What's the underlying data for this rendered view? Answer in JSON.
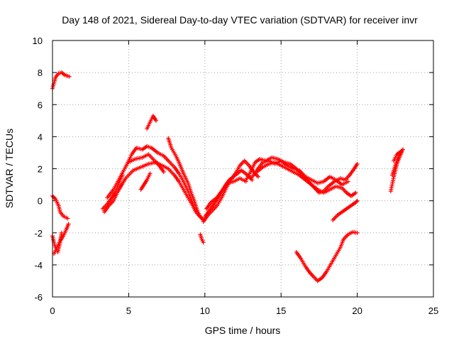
{
  "chart_data": {
    "type": "scatter",
    "title": "Day 148 of 2021, Sidereal Day-to-day VTEC variation (SDTVAR) for receiver invr",
    "xlabel": "GPS time / hours",
    "ylabel": "SDTVAR / TECUs",
    "xlim": [
      0,
      25
    ],
    "ylim": [
      -6,
      10
    ],
    "xticks": [
      0,
      5,
      10,
      15,
      20,
      25
    ],
    "yticks": [
      -6,
      -4,
      -2,
      0,
      2,
      4,
      6,
      8,
      10
    ],
    "xtick_labels": [
      "0",
      "5",
      "10",
      "15",
      "20",
      "25"
    ],
    "ytick_labels": [
      "-6",
      "-4",
      "-2",
      "0",
      "2",
      "4",
      "6",
      "8",
      "10"
    ],
    "grid": true,
    "marker": "+",
    "series": [
      {
        "name": "tracks",
        "color": "#ff0000",
        "tracks": [
          [
            [
              0.0,
              7.0
            ],
            [
              0.2,
              7.7
            ],
            [
              0.4,
              7.95
            ],
            [
              0.6,
              8.0
            ],
            [
              0.8,
              7.85
            ],
            [
              1.1,
              7.75
            ]
          ],
          [
            [
              0.0,
              0.3
            ],
            [
              0.2,
              0.1
            ],
            [
              0.4,
              -0.3
            ],
            [
              0.5,
              -0.7
            ],
            [
              0.7,
              -0.95
            ],
            [
              1.0,
              -1.1
            ]
          ],
          [
            [
              0.1,
              -3.3
            ],
            [
              0.3,
              -2.9
            ],
            [
              0.5,
              -2.5
            ],
            [
              0.7,
              -2.2
            ],
            [
              0.9,
              -1.8
            ],
            [
              1.05,
              -1.45
            ]
          ],
          [
            [
              0.0,
              -2.2
            ],
            [
              0.15,
              -2.8
            ],
            [
              0.35,
              -3.2
            ],
            [
              0.5,
              -2.6
            ],
            [
              0.6,
              -2.0
            ]
          ],
          [
            [
              3.3,
              -0.5
            ],
            [
              3.6,
              -0.2
            ],
            [
              3.9,
              0.2
            ],
            [
              4.1,
              0.5
            ],
            [
              4.4,
              1.2
            ],
            [
              4.6,
              1.6
            ]
          ],
          [
            [
              3.4,
              -0.7
            ],
            [
              3.7,
              -0.3
            ],
            [
              4.0,
              0.0
            ],
            [
              4.3,
              0.6
            ],
            [
              4.5,
              1.0
            ]
          ],
          [
            [
              3.6,
              0.2
            ],
            [
              4.0,
              0.7
            ],
            [
              4.4,
              1.4
            ],
            [
              4.9,
              2.3
            ],
            [
              5.2,
              2.9
            ],
            [
              5.5,
              3.3
            ],
            [
              5.9,
              3.2
            ],
            [
              6.2,
              3.4
            ],
            [
              6.5,
              3.3
            ],
            [
              6.9,
              3.0
            ],
            [
              7.3,
              2.8
            ],
            [
              7.6,
              2.5
            ],
            [
              8.0,
              2.1
            ],
            [
              8.3,
              1.7
            ],
            [
              8.6,
              1.2
            ],
            [
              8.9,
              0.6
            ],
            [
              9.1,
              0.1
            ],
            [
              9.3,
              -0.4
            ],
            [
              9.5,
              -0.8
            ],
            [
              9.8,
              -1.1
            ]
          ],
          [
            [
              4.3,
              0.6
            ],
            [
              4.8,
              1.4
            ],
            [
              5.3,
              1.9
            ],
            [
              5.8,
              2.1
            ],
            [
              6.3,
              2.3
            ],
            [
              6.8,
              2.4
            ],
            [
              7.2,
              2.2
            ],
            [
              7.6,
              2.0
            ],
            [
              8.0,
              1.6
            ],
            [
              8.3,
              1.2
            ],
            [
              8.6,
              0.7
            ],
            [
              8.9,
              0.2
            ],
            [
              9.2,
              -0.3
            ],
            [
              9.4,
              -0.7
            ]
          ],
          [
            [
              5.0,
              2.4
            ],
            [
              5.4,
              2.6
            ],
            [
              5.9,
              2.7
            ],
            [
              6.3,
              2.9
            ],
            [
              6.7,
              2.5
            ],
            [
              7.0,
              2.2
            ],
            [
              7.3,
              1.8
            ]
          ],
          [
            [
              7.6,
              3.9
            ],
            [
              7.8,
              3.3
            ],
            [
              8.1,
              2.8
            ],
            [
              8.3,
              2.4
            ],
            [
              8.6,
              1.7
            ],
            [
              8.9,
              1.1
            ],
            [
              9.1,
              0.5
            ],
            [
              9.3,
              0.0
            ],
            [
              9.5,
              -0.6
            ],
            [
              9.7,
              -1.0
            ],
            [
              9.9,
              -1.2
            ]
          ],
          [
            [
              6.2,
              4.5
            ],
            [
              6.4,
              4.9
            ],
            [
              6.6,
              5.3
            ],
            [
              6.8,
              5.0
            ]
          ],
          [
            [
              5.8,
              0.7
            ],
            [
              6.0,
              1.0
            ],
            [
              6.2,
              1.3
            ],
            [
              6.4,
              1.7
            ]
          ],
          [
            [
              9.7,
              -2.1
            ],
            [
              9.8,
              -2.4
            ],
            [
              9.9,
              -2.6
            ]
          ],
          [
            [
              9.9,
              -1.3
            ],
            [
              10.2,
              -0.9
            ],
            [
              10.5,
              -0.6
            ],
            [
              10.8,
              -0.3
            ],
            [
              11.1,
              0.2
            ],
            [
              11.4,
              0.8
            ],
            [
              11.7,
              1.3
            ],
            [
              12.0,
              1.7
            ],
            [
              12.3,
              2.2
            ],
            [
              12.6,
              2.5
            ],
            [
              12.9,
              2.2
            ],
            [
              13.2,
              1.8
            ],
            [
              13.5,
              1.5
            ]
          ],
          [
            [
              10.0,
              -1.0
            ],
            [
              10.3,
              -0.6
            ],
            [
              10.6,
              -0.2
            ],
            [
              11.0,
              0.4
            ],
            [
              11.3,
              0.9
            ],
            [
              11.6,
              1.3
            ],
            [
              12.0,
              1.6
            ],
            [
              12.4,
              1.9
            ],
            [
              12.8,
              1.6
            ],
            [
              13.1,
              1.3
            ]
          ],
          [
            [
              10.1,
              -0.5
            ],
            [
              10.4,
              -0.1
            ],
            [
              10.8,
              0.2
            ],
            [
              11.1,
              0.6
            ],
            [
              11.5,
              1.1
            ],
            [
              11.9,
              1.2
            ],
            [
              12.3,
              1.4
            ],
            [
              12.7,
              1.2
            ]
          ],
          [
            [
              12.7,
              1.3
            ],
            [
              13.0,
              1.8
            ],
            [
              13.3,
              2.4
            ],
            [
              13.6,
              2.6
            ],
            [
              14.0,
              2.5
            ],
            [
              14.4,
              2.7
            ],
            [
              14.8,
              2.6
            ],
            [
              15.2,
              2.4
            ],
            [
              15.6,
              2.3
            ],
            [
              16.0,
              2.0
            ],
            [
              16.4,
              1.6
            ],
            [
              16.8,
              1.2
            ],
            [
              17.2,
              0.8
            ],
            [
              17.5,
              0.5
            ],
            [
              17.8,
              0.6
            ],
            [
              18.1,
              0.9
            ],
            [
              18.5,
              1.2
            ],
            [
              18.9,
              1.4
            ],
            [
              19.2,
              1.3
            ],
            [
              19.5,
              1.6
            ],
            [
              19.8,
              2.0
            ],
            [
              20.0,
              2.3
            ]
          ],
          [
            [
              13.0,
              1.4
            ],
            [
              13.4,
              1.8
            ],
            [
              13.8,
              2.1
            ],
            [
              14.2,
              2.3
            ],
            [
              14.6,
              2.4
            ],
            [
              15.0,
              2.2
            ],
            [
              15.4,
              2.0
            ],
            [
              15.8,
              1.8
            ],
            [
              16.2,
              1.6
            ],
            [
              16.6,
              1.3
            ],
            [
              17.0,
              1.0
            ],
            [
              17.4,
              0.7
            ],
            [
              17.8,
              0.5
            ],
            [
              18.2,
              0.7
            ],
            [
              18.6,
              0.9
            ],
            [
              19.0,
              0.8
            ],
            [
              19.3,
              0.5
            ],
            [
              19.6,
              0.3
            ],
            [
              19.9,
              0.5
            ]
          ],
          [
            [
              13.4,
              1.9
            ],
            [
              13.8,
              2.4
            ],
            [
              14.2,
              2.5
            ],
            [
              14.6,
              2.3
            ],
            [
              15.0,
              2.5
            ],
            [
              15.4,
              2.2
            ],
            [
              15.8,
              2.0
            ],
            [
              16.2,
              1.9
            ],
            [
              16.6,
              1.5
            ],
            [
              17.0,
              1.3
            ],
            [
              17.4,
              1.1
            ],
            [
              17.8,
              1.2
            ],
            [
              18.2,
              1.5
            ],
            [
              18.6,
              1.3
            ],
            [
              19.0,
              1.0
            ],
            [
              19.4,
              1.2
            ]
          ],
          [
            [
              18.4,
              -1.2
            ],
            [
              18.7,
              -0.9
            ],
            [
              19.0,
              -0.7
            ],
            [
              19.3,
              -0.5
            ],
            [
              19.6,
              -0.3
            ],
            [
              19.9,
              -0.1
            ],
            [
              20.0,
              0.0
            ]
          ],
          [
            [
              16.0,
              -3.2
            ],
            [
              16.3,
              -3.6
            ],
            [
              16.6,
              -4.1
            ],
            [
              16.9,
              -4.5
            ],
            [
              17.1,
              -4.7
            ],
            [
              17.4,
              -5.0
            ],
            [
              17.7,
              -4.8
            ],
            [
              18.0,
              -4.4
            ],
            [
              18.3,
              -3.9
            ],
            [
              18.6,
              -3.4
            ],
            [
              18.9,
              -2.9
            ],
            [
              19.1,
              -2.4
            ],
            [
              19.4,
              -2.1
            ],
            [
              19.7,
              -1.95
            ],
            [
              20.0,
              -2.0
            ]
          ],
          [
            [
              22.2,
              0.6
            ],
            [
              22.4,
              1.5
            ],
            [
              22.6,
              2.3
            ],
            [
              22.9,
              3.0
            ]
          ],
          [
            [
              22.3,
              1.6
            ],
            [
              22.5,
              2.2
            ],
            [
              22.7,
              2.8
            ],
            [
              23.0,
              3.2
            ]
          ],
          [
            [
              22.4,
              2.5
            ],
            [
              22.6,
              2.9
            ],
            [
              22.9,
              3.1
            ]
          ]
        ]
      }
    ]
  }
}
